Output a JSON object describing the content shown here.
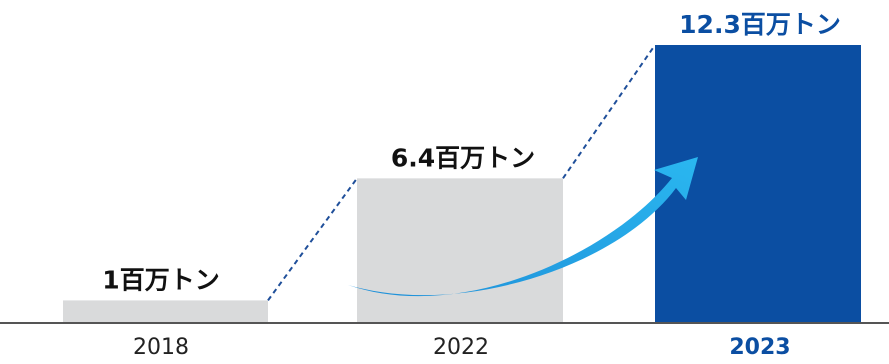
{
  "chart_data": {
    "type": "bar",
    "categories": [
      "2018",
      "2022",
      "2023"
    ],
    "values": [
      1,
      6.4,
      12.3
    ],
    "value_labels": [
      "1百万トン",
      "6.4百万トン",
      "12.3百万トン"
    ],
    "highlight_category": "2023",
    "ylim": [
      0,
      12.3
    ],
    "grid": false,
    "legend": "none"
  },
  "colors": {
    "bar_default": "#d9dadb",
    "bar_highlight": "#0b4ea2",
    "highlight_text": "#0b4ea2",
    "label_text": "#111111",
    "tick_text": "#222222",
    "arrow_start": "#1f8fd8",
    "arrow_end": "#2ab7f0",
    "baseline": "#555555",
    "dashed_line": "#1f4f9a"
  },
  "icons": {
    "growth_arrow": "curved-growth-arrow"
  }
}
